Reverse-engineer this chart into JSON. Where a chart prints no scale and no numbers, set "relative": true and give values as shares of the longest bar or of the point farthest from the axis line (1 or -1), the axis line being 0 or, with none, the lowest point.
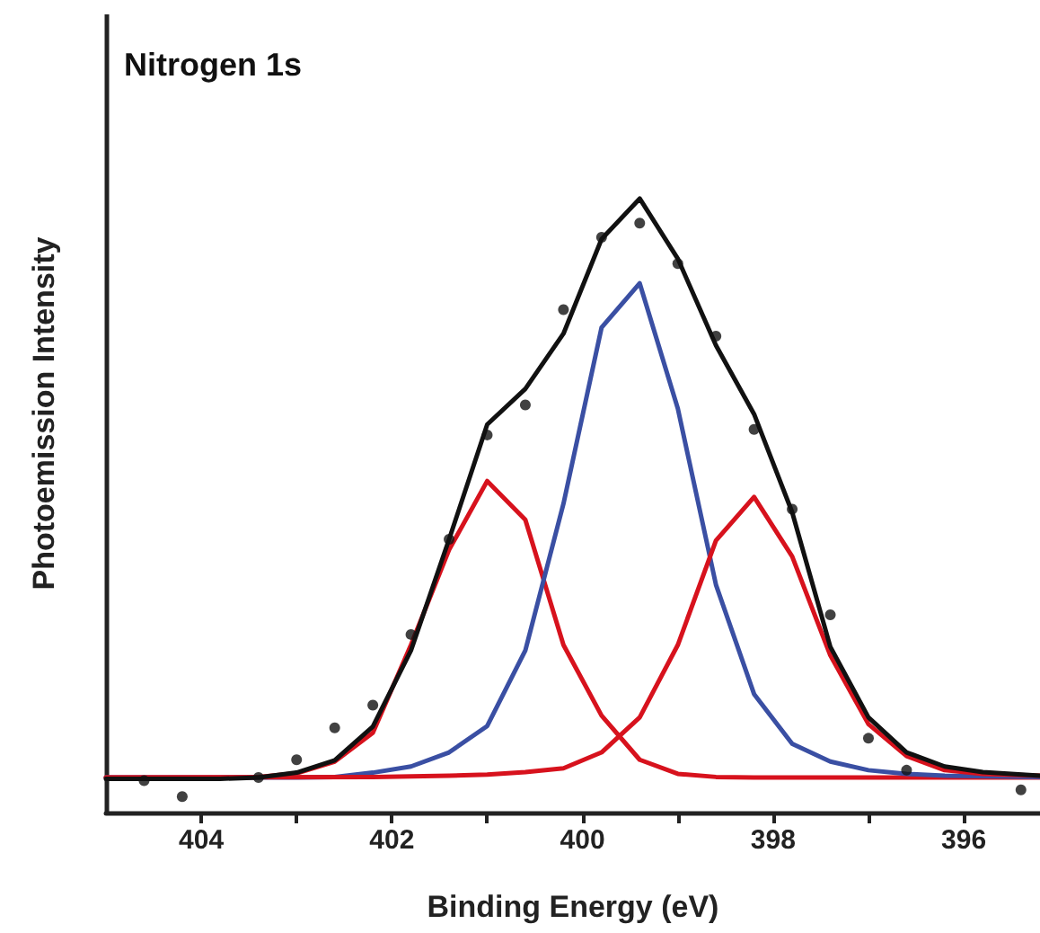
{
  "chart_data": {
    "type": "line",
    "title": "Nitrogen 1s",
    "xlabel": "Binding Energy (eV)",
    "ylabel": "Photoemission Intensity",
    "relative": true,
    "xlim": [
      405,
      395.2
    ],
    "xticks": [
      404,
      {
        "value": 403,
        "label": null
      },
      402,
      {
        "value": 401,
        "label": null
      },
      400,
      {
        "value": 399,
        "label": null
      },
      398,
      {
        "value": 397,
        "label": null
      },
      396
    ],
    "tick_labels": "x",
    "grid": false,
    "series": [
      {
        "marker": "none",
        "color": "#d7121d",
        "x": [
          405,
          403.8,
          403.4,
          403.0,
          402.6,
          402.2,
          401.8,
          401.4,
          401.0,
          400.6,
          400.2,
          399.8,
          399.4,
          399.0,
          398.6,
          398.2,
          397.0,
          395.2
        ],
        "values": [
          0.057,
          0.057,
          0.058,
          0.064,
          0.083,
          0.13,
          0.273,
          0.428,
          0.54,
          0.477,
          0.273,
          0.158,
          0.086,
          0.063,
          0.058,
          0.057,
          0.057,
          0.057
        ]
      },
      {
        "marker": "none",
        "color": "#3a4fa3",
        "x": [
          405,
          403.0,
          402.6,
          402.2,
          401.8,
          401.4,
          401.0,
          400.6,
          400.2,
          399.8,
          399.4,
          399.0,
          398.6,
          398.2,
          397.8,
          397.4,
          397.0,
          396.6,
          396.2,
          395.2
        ],
        "values": [
          0.057,
          0.057,
          0.058,
          0.065,
          0.075,
          0.098,
          0.141,
          0.264,
          0.503,
          0.79,
          0.862,
          0.658,
          0.371,
          0.193,
          0.112,
          0.083,
          0.069,
          0.063,
          0.06,
          0.058
        ]
      },
      {
        "marker": "none",
        "color": "#d7121d",
        "x": [
          405,
          402.2,
          401.4,
          401.0,
          400.6,
          400.2,
          399.8,
          399.4,
          399.0,
          398.6,
          398.2,
          397.8,
          397.4,
          397.0,
          396.6,
          396.2,
          395.8,
          395.2
        ],
        "values": [
          0.057,
          0.058,
          0.06,
          0.062,
          0.066,
          0.072,
          0.098,
          0.155,
          0.273,
          0.443,
          0.514,
          0.417,
          0.256,
          0.144,
          0.092,
          0.069,
          0.063,
          0.06
        ]
      },
      {
        "marker": "none",
        "color": "#111111",
        "x": [
          405,
          403.8,
          403.4,
          403.0,
          402.6,
          402.2,
          401.8,
          401.4,
          401.0,
          400.6,
          400.2,
          399.8,
          399.4,
          399.0,
          398.6,
          398.2,
          397.8,
          397.4,
          397.0,
          396.6,
          396.2,
          395.8,
          395.2
        ],
        "values": [
          0.055,
          0.055,
          0.057,
          0.065,
          0.085,
          0.14,
          0.264,
          0.445,
          0.632,
          0.69,
          0.78,
          0.934,
          1.0,
          0.902,
          0.761,
          0.649,
          0.489,
          0.27,
          0.155,
          0.098,
          0.075,
          0.066,
          0.06
        ]
      },
      {
        "type": "scatter",
        "marker": "circle",
        "color": "#111111",
        "x": [
          404.6,
          404.2,
          403.4,
          403.0,
          402.6,
          402.2,
          401.8,
          401.4,
          401.0,
          400.6,
          400.2,
          399.8,
          399.4,
          399.0,
          398.6,
          398.2,
          397.8,
          397.4,
          397.0,
          396.6,
          395.4
        ],
        "values": [
          0.052,
          0.026,
          0.057,
          0.086,
          0.138,
          0.175,
          0.29,
          0.445,
          0.615,
          0.664,
          0.819,
          0.937,
          0.96,
          0.894,
          0.776,
          0.624,
          0.494,
          0.322,
          0.121,
          0.069,
          0.037
        ]
      }
    ]
  }
}
